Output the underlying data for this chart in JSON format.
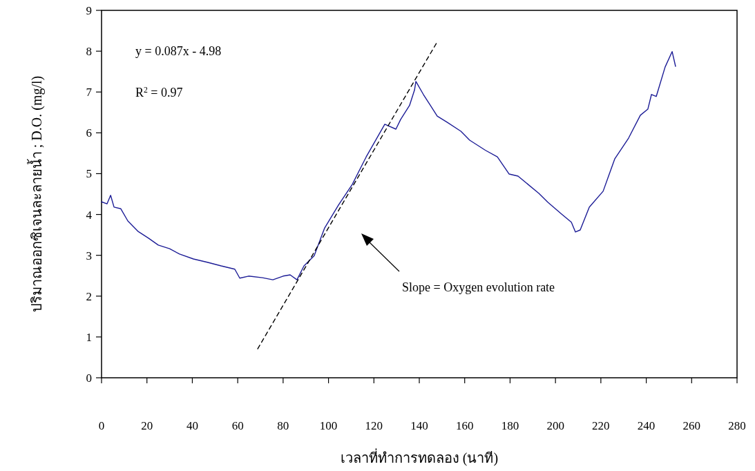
{
  "chart_data": {
    "type": "line",
    "xlabel": "เวลาที่ทำการทดลอง (นาที)",
    "ylabel": "ปริมาณออกซิเจนละลายน้ำ ; D.O. (mg/l)",
    "annotations": [
      "y = 0.087x - 4.98",
      "R$^{2}$ = 0.97",
      "Slope = Oxygen evolution rate"
    ],
    "xlim": [
      0,
      280
    ],
    "xticks": [
      0,
      20,
      40,
      60,
      80,
      100,
      120,
      140,
      160,
      180,
      200,
      220,
      240,
      260,
      280
    ],
    "ylim": [
      0,
      9
    ],
    "yticks": [
      0,
      1,
      2,
      3,
      4,
      5,
      6,
      7,
      8,
      9
    ],
    "grid": false,
    "marker": "none",
    "series": [
      {
        "color": "#1c1c96",
        "line_style": "solid",
        "x": [
          0,
          2.4,
          4,
          5.5,
          8.5,
          11.6,
          16,
          20.7,
          25,
          30,
          34.4,
          40.5,
          46.6,
          52.7,
          58.7,
          60.9,
          64.8,
          70.9,
          75.5,
          80,
          83.1,
          86.1,
          89.2,
          93.7,
          98.3,
          104.4,
          110.5,
          116.6,
          124.8,
          129.7,
          131.8,
          135.7,
          137.9,
          138.5,
          141.8,
          144.9,
          147.9,
          152.2,
          158.3,
          162.2,
          169.2,
          174.4,
          179.6,
          183.5,
          192.6,
          196.6,
          202.7,
          207,
          208.8,
          210.9,
          214.9,
          221,
          226.1,
          232.2,
          237.4,
          240.7,
          242.3,
          244.4,
          248.3,
          251.4,
          252.9
        ],
        "values": [
          4.31,
          4.26,
          4.47,
          4.18,
          4.14,
          3.84,
          3.59,
          3.42,
          3.25,
          3.16,
          3.03,
          2.91,
          2.83,
          2.74,
          2.66,
          2.44,
          2.49,
          2.45,
          2.4,
          2.49,
          2.52,
          2.4,
          2.74,
          2.99,
          3.67,
          4.23,
          4.74,
          5.41,
          6.21,
          6.09,
          6.33,
          6.67,
          7.05,
          7.26,
          6.94,
          6.67,
          6.41,
          6.26,
          6.04,
          5.82,
          5.57,
          5.41,
          4.99,
          4.94,
          4.52,
          4.3,
          4.01,
          3.81,
          3.57,
          3.62,
          4.18,
          4.57,
          5.36,
          5.87,
          6.43,
          6.58,
          6.94,
          6.89,
          7.61,
          7.99,
          7.63
        ]
      },
      {
        "type": "line",
        "color": "#000000",
        "line_style": "dashed",
        "x": [
          68.8,
          147.6
        ],
        "values": [
          0.71,
          8.2
        ]
      }
    ]
  }
}
